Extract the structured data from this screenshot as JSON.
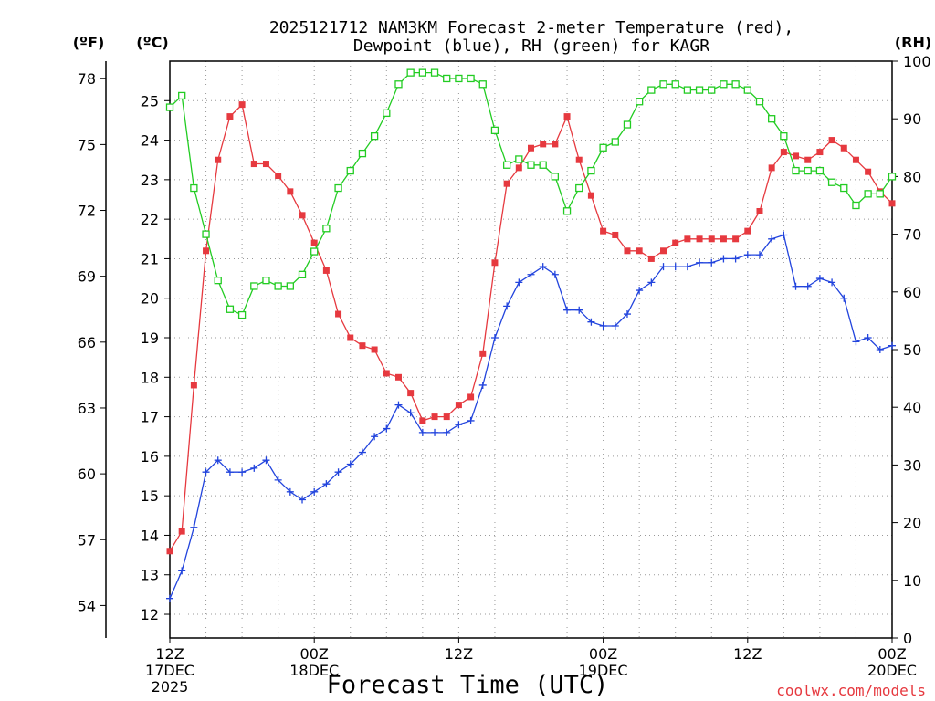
{
  "chart_data": {
    "type": "line",
    "title_line1": "2025121712 NAM3KM Forecast 2-meter Temperature (red),",
    "title_line2": "Dewpoint (blue), RH (green) for KAGR",
    "unit_f": "(ºF)",
    "unit_c": "(ºC)",
    "unit_rh": "(RH)",
    "xlabel": "Forecast Time (UTC)",
    "credit": "coolwx.com/models",
    "x_range_hours": [
      0,
      60
    ],
    "celsius_range": [
      11.4,
      26.0
    ],
    "rh_range": [
      0,
      100
    ],
    "celsius_ticks": [
      "12",
      "13",
      "14",
      "15",
      "16",
      "17",
      "18",
      "19",
      "20",
      "21",
      "22",
      "23",
      "24",
      "25"
    ],
    "fahrenheit_ticks": [
      "54",
      "57",
      "60",
      "63",
      "66",
      "69",
      "72",
      "75",
      "78"
    ],
    "rh_ticks": [
      "0",
      "10",
      "20",
      "30",
      "40",
      "50",
      "60",
      "70",
      "80",
      "90",
      "100"
    ],
    "x_ticks": [
      {
        "hour": 0,
        "line1": "12Z",
        "line2": "17DEC",
        "line3": "2025"
      },
      {
        "hour": 12,
        "line1": "00Z",
        "line2": "18DEC",
        "line3": ""
      },
      {
        "hour": 24,
        "line1": "12Z",
        "line2": "",
        "line3": ""
      },
      {
        "hour": 36,
        "line1": "00Z",
        "line2": "19DEC",
        "line3": ""
      },
      {
        "hour": 48,
        "line1": "12Z",
        "line2": "",
        "line3": ""
      },
      {
        "hour": 60,
        "line1": "00Z",
        "line2": "20DEC",
        "line3": ""
      }
    ],
    "series": [
      {
        "name": "Temperature",
        "units": "C",
        "color": "#e6393f",
        "marker": "filled-square",
        "values": [
          13.6,
          14.1,
          17.8,
          21.2,
          23.5,
          24.6,
          24.9,
          23.4,
          23.4,
          23.1,
          22.7,
          22.1,
          21.4,
          20.7,
          19.6,
          19.0,
          18.8,
          18.7,
          18.1,
          18.0,
          17.6,
          16.9,
          17.0,
          17.0,
          17.3,
          17.5,
          18.6,
          20.9,
          22.9,
          23.3,
          23.8,
          23.9,
          23.9,
          24.6,
          23.5,
          22.6,
          21.7,
          21.6,
          21.2,
          21.2,
          21.0,
          21.2,
          21.4,
          21.5,
          21.5,
          21.5,
          21.5,
          21.5,
          21.7,
          22.2,
          23.3,
          23.7,
          23.6,
          23.5,
          23.7,
          24.0,
          23.8,
          23.5,
          23.2,
          22.7,
          22.4
        ]
      },
      {
        "name": "Dewpoint",
        "units": "C",
        "color": "#2244dd",
        "marker": "plus",
        "values": [
          12.4,
          13.1,
          14.2,
          15.6,
          15.9,
          15.6,
          15.6,
          15.7,
          15.9,
          15.4,
          15.1,
          14.9,
          15.1,
          15.3,
          15.6,
          15.8,
          16.1,
          16.5,
          16.7,
          17.3,
          17.1,
          16.6,
          16.6,
          16.6,
          16.8,
          16.9,
          17.8,
          19.0,
          19.8,
          20.4,
          20.6,
          20.8,
          20.6,
          19.7,
          19.7,
          19.4,
          19.3,
          19.3,
          19.6,
          20.2,
          20.4,
          20.8,
          20.8,
          20.8,
          20.9,
          20.9,
          21.0,
          21.0,
          21.1,
          21.1,
          21.5,
          21.6,
          20.3,
          20.3,
          20.5,
          20.4,
          20.0,
          18.9,
          19.0,
          18.7,
          18.8
        ]
      },
      {
        "name": "Relative Humidity",
        "units": "%",
        "color": "#22cc22",
        "marker": "open-square",
        "values": [
          92,
          94,
          78,
          70,
          62,
          57,
          56,
          61,
          62,
          61,
          61,
          63,
          67,
          71,
          78,
          81,
          84,
          87,
          91,
          96,
          98,
          98,
          98,
          97,
          97,
          97,
          96,
          88,
          82,
          83,
          82,
          82,
          80,
          74,
          78,
          81,
          85,
          86,
          89,
          93,
          95,
          96,
          96,
          95,
          95,
          95,
          96,
          96,
          95,
          93,
          90,
          87,
          81,
          81,
          81,
          79,
          78,
          75,
          77,
          77,
          80
        ]
      }
    ]
  }
}
